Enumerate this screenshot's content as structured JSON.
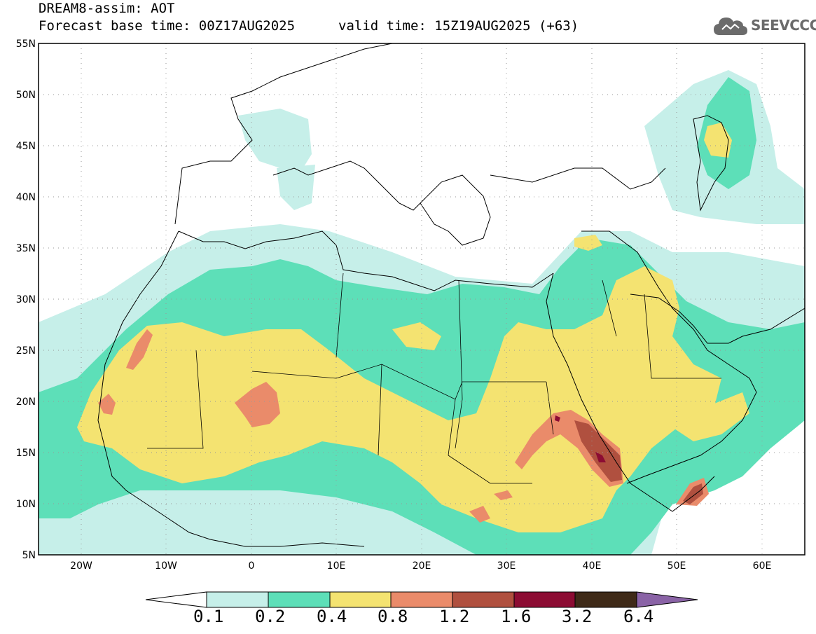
{
  "header": {
    "title": "DREAM8-assim: AOT",
    "base_time": "Forecast base time: 00Z17AUG2025",
    "valid_time": "valid time: 15Z19AUG2025 (+63)"
  },
  "logo": {
    "text": "SEEVCCC",
    "icon": "cloud-icon"
  },
  "map": {
    "variable": "AOT",
    "projection": "lat-lon",
    "lon_range": [
      -25,
      65
    ],
    "lat_range": [
      5,
      55
    ],
    "lat_ticks": [
      "5N",
      "10N",
      "15N",
      "20N",
      "25N",
      "30N",
      "35N",
      "40N",
      "45N",
      "50N",
      "55N"
    ],
    "lon_ticks": [
      "20W",
      "10W",
      "0",
      "10E",
      "20E",
      "30E",
      "40E",
      "50E",
      "60E"
    ],
    "gridlines": "dotted"
  },
  "colorbar": {
    "levels": [
      "0.1",
      "0.2",
      "0.4",
      "0.8",
      "1.2",
      "1.6",
      "3.2",
      "6.4"
    ],
    "colors": [
      "#c6efe9",
      "#5ddfb8",
      "#f4e371",
      "#ea8b6a",
      "#b0503f",
      "#8c0c33",
      "#3f2a18",
      "#8a63a6"
    ],
    "extend": "both"
  }
}
